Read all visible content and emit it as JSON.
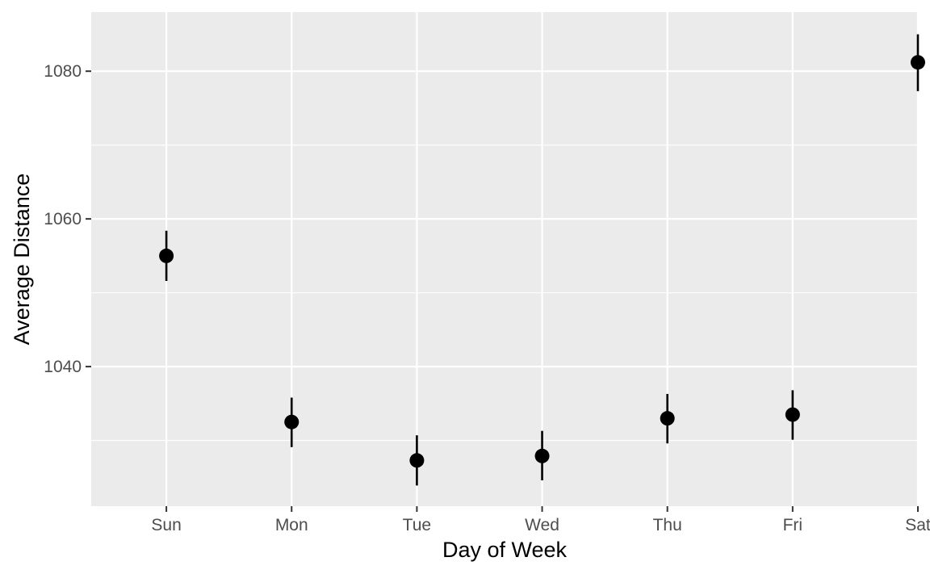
{
  "chart_data": {
    "type": "scatter",
    "title": "",
    "xlabel": "Day of Week",
    "ylabel": "Average Distance",
    "categories": [
      "Sun",
      "Mon",
      "Tue",
      "Wed",
      "Thu",
      "Fri",
      "Sat"
    ],
    "series": [
      {
        "values": [
          1055.0,
          1032.5,
          1027.3,
          1027.9,
          1033.0,
          1033.5,
          1081.2
        ],
        "error_low": [
          1051.6,
          1029.1,
          1023.9,
          1024.6,
          1029.6,
          1030.1,
          1077.3
        ],
        "error_high": [
          1058.4,
          1035.8,
          1030.7,
          1031.3,
          1036.3,
          1036.8,
          1085.0
        ]
      }
    ],
    "ylim": [
      1021.1,
      1088.0
    ],
    "yticks": [
      1040,
      1060,
      1080
    ],
    "y_minor_ticks": [
      1030,
      1050,
      1070
    ],
    "grid": true,
    "colors": {
      "panel_background": "#ebebeb",
      "grid_line": "#ffffff",
      "point": "#000000",
      "tick_label": "#4d4d4d",
      "tick_mark": "#333333"
    }
  }
}
